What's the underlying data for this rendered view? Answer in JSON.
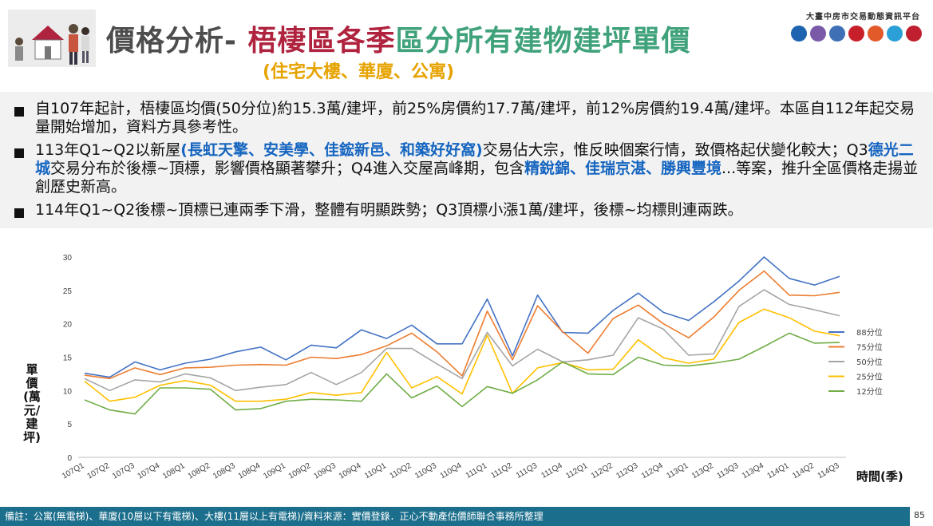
{
  "header": {
    "title_part1": "價格分析-",
    "title_part2": "梧棲區各季",
    "title_part3": "區分所有建物建坪單價",
    "subtitle": "(住宅大樓、華廈、公寓)",
    "platform_name": "大臺中房市交易動態資訊平台",
    "colors": {
      "title_gray": "#4d4d4d",
      "title_red": "#b0233f",
      "title_green": "#3fa27a",
      "subtitle_gold": "#e6a300",
      "highlight_blue": "#1565c0"
    }
  },
  "bullets": [
    {
      "segments": [
        {
          "text": "自107年起計，梧棲區均價(50分位)約15.3萬/建坪，前25%房價約17.7萬/建坪，前12%房價約19.4萬/建坪。本區自112年起交易量開始增加，資料方具參考性。",
          "hl": false
        }
      ]
    },
    {
      "segments": [
        {
          "text": "113年Q1~Q2以新屋",
          "hl": false
        },
        {
          "text": "(長虹天擎、安美學、佳鋐新邑、和築好好窩)",
          "hl": true
        },
        {
          "text": "交易佔大宗，惟反映個案行情，致價格起伏變化較大；Q3",
          "hl": false
        },
        {
          "text": "德光二城",
          "hl": true
        },
        {
          "text": "交易分布於後標~頂標，影響價格顯著攀升；Q4進入交屋高峰期，包含",
          "hl": false
        },
        {
          "text": "精銳錦、佳瑞京湛、勝興豐境",
          "hl": true
        },
        {
          "text": "...等案，推升全區價格走揚並創歷史新高。",
          "hl": false
        }
      ]
    },
    {
      "segments": [
        {
          "text": "114年Q1~Q2後標~頂標已連兩季下滑，整體有明顯跌勢；Q3頂標小漲1萬/建坪，後標~均標則連兩跌。",
          "hl": false
        }
      ]
    }
  ],
  "chart_data": {
    "type": "line",
    "xlabel": "時間(季)",
    "ylabel": "單價(萬元/建坪)",
    "ylim": [
      0,
      30
    ],
    "yticks": [
      0,
      5,
      10,
      15,
      20,
      25,
      30
    ],
    "grid": false,
    "legend_position": "right",
    "categories": [
      "107Q1",
      "107Q2",
      "107Q3",
      "107Q4",
      "108Q1",
      "108Q2",
      "108Q3",
      "108Q4",
      "109Q1",
      "109Q2",
      "109Q3",
      "109Q4",
      "110Q1",
      "110Q2",
      "110Q3",
      "110Q4",
      "111Q1",
      "111Q2",
      "111Q3",
      "111Q4",
      "112Q1",
      "112Q2",
      "112Q3",
      "112Q4",
      "113Q1",
      "113Q2",
      "113Q3",
      "113Q4",
      "114Q1",
      "114Q2",
      "114Q3"
    ],
    "series": [
      {
        "name": "88分位",
        "color": "#4472c4",
        "values": [
          12.6,
          12.0,
          14.3,
          13.1,
          14.1,
          14.7,
          15.8,
          16.5,
          14.6,
          16.8,
          16.4,
          19.1,
          17.8,
          19.8,
          17.0,
          17.0,
          23.7,
          15.2,
          24.3,
          18.7,
          18.6,
          22.0,
          24.6,
          21.7,
          20.5,
          23.3,
          26.4,
          30.0,
          26.8,
          25.8,
          27.1
        ]
      },
      {
        "name": "75分位",
        "color": "#ed7d31",
        "values": [
          12.3,
          11.8,
          13.4,
          12.4,
          13.4,
          13.5,
          13.8,
          13.9,
          13.8,
          15.0,
          14.8,
          15.4,
          16.7,
          18.6,
          15.8,
          12.2,
          21.9,
          14.6,
          22.7,
          18.8,
          15.6,
          20.8,
          22.8,
          20.0,
          17.9,
          21.0,
          25.0,
          27.9,
          24.3,
          24.2,
          24.7
        ]
      },
      {
        "name": "50分位",
        "color": "#a5a5a5",
        "values": [
          11.8,
          10.0,
          11.6,
          11.3,
          12.5,
          11.9,
          10.0,
          10.5,
          10.9,
          12.7,
          10.9,
          12.7,
          16.3,
          16.3,
          14.0,
          11.8,
          18.7,
          13.7,
          16.2,
          14.3,
          14.6,
          15.3,
          20.9,
          19.2,
          15.3,
          15.5,
          22.6,
          25.1,
          22.9,
          22.1,
          21.2
        ]
      },
      {
        "name": "25分位",
        "color": "#ffc000",
        "values": [
          11.4,
          8.4,
          9.0,
          10.8,
          11.5,
          10.8,
          8.4,
          8.4,
          8.7,
          9.7,
          9.3,
          9.7,
          15.7,
          10.4,
          12.1,
          9.5,
          18.3,
          9.6,
          13.4,
          14.2,
          13.1,
          13.2,
          17.6,
          14.9,
          14.1,
          14.7,
          20.2,
          22.2,
          20.9,
          18.9,
          18.2
        ]
      },
      {
        "name": "12分位",
        "color": "#70ad47",
        "values": [
          8.6,
          7.1,
          6.5,
          10.4,
          10.4,
          10.2,
          7.1,
          7.3,
          8.4,
          8.7,
          8.6,
          8.4,
          12.5,
          8.9,
          10.7,
          7.6,
          10.6,
          9.6,
          11.6,
          14.3,
          12.5,
          12.4,
          15.0,
          13.8,
          13.7,
          14.1,
          14.7,
          16.6,
          18.6,
          17.1,
          17.2
        ]
      }
    ]
  },
  "footer": {
    "note": "備註：公寓(無電梯)、華廈(10層以下有電梯)、大樓(11層以上有電梯)/資料來源：實價登錄．正心不動產估價師聯合事務所整理",
    "page_number": "85"
  },
  "icons": {
    "logo_art": "house-family-illustration-icon",
    "badges": [
      {
        "name": "tuda-logo-icon",
        "color": "#1e63b0"
      },
      {
        "name": "government-seal-icon",
        "color": "#7a5aa8"
      },
      {
        "name": "building-logo-icon",
        "color": "#3f6fb5"
      },
      {
        "name": "bank-logo-icon",
        "color": "#c8202a"
      },
      {
        "name": "partner-logo-icon",
        "color": "#e25a2a"
      },
      {
        "name": "colorful-logo-icon",
        "color": "#2aa0d6"
      },
      {
        "name": "association-logo-icon",
        "color": "#c01f2f"
      }
    ]
  }
}
